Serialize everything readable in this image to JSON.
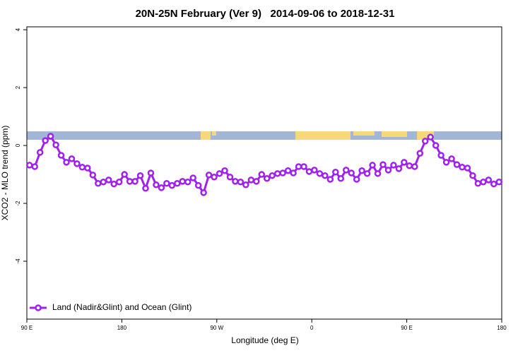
{
  "chart_data": {
    "type": "line",
    "title": "20N-25N February (Ver 9)   2014-09-06 to 2018-12-31",
    "x_label": "Longitude (deg E)",
    "y_label": "XCO2 - MLO trend (ppm)",
    "x": [
      92.5,
      97.5,
      102.5,
      107.5,
      112.5,
      117.5,
      122.5,
      127.5,
      132.5,
      137.5,
      142.5,
      147.5,
      152.5,
      157.5,
      162.5,
      167.5,
      172.5,
      177.5,
      182.5,
      187.5,
      192.5,
      197.5,
      202.5,
      207.5,
      212.5,
      217.5,
      222.5,
      227.5,
      232.5,
      237.5,
      242.5,
      247.5,
      252.5,
      257.5,
      262.5,
      267.5,
      272.5,
      277.5,
      282.5,
      287.5,
      292.5,
      297.5,
      302.5,
      307.5,
      312.5,
      317.5,
      322.5,
      327.5,
      332.5,
      337.5,
      342.5,
      347.5,
      352.5,
      357.5,
      362.5,
      367.5,
      372.5,
      377.5,
      382.5,
      387.5,
      392.5,
      397.5,
      402.5,
      407.5,
      412.5,
      417.5,
      422.5,
      427.5,
      432.5,
      437.5,
      442.5,
      447.5,
      452.5,
      457.5,
      462.5,
      467.5,
      472.5,
      477.5,
      482.5,
      487.5,
      492.5,
      497.5,
      502.5,
      507.5,
      512.5,
      517.5,
      522.5,
      527.5,
      532.5,
      537.5
    ],
    "series": [
      {
        "name": "Land (Nadir&Glint) and Ocean (Glint)",
        "color": "#a020f0",
        "values": [
          -0.68,
          -0.73,
          -0.24,
          0.17,
          0.32,
          0.02,
          -0.34,
          -0.58,
          -0.46,
          -0.63,
          -0.75,
          -0.78,
          -1.02,
          -1.31,
          -1.26,
          -1.19,
          -1.33,
          -1.26,
          -1.0,
          -1.24,
          -1.24,
          -1.04,
          -1.48,
          -0.95,
          -1.36,
          -1.46,
          -1.31,
          -1.38,
          -1.31,
          -1.24,
          -1.26,
          -1.12,
          -1.38,
          -1.63,
          -1.02,
          -1.09,
          -0.97,
          -0.87,
          -1.09,
          -1.24,
          -1.26,
          -1.36,
          -1.19,
          -1.24,
          -1.0,
          -1.14,
          -1.04,
          -0.97,
          -0.95,
          -0.87,
          -0.95,
          -0.73,
          -0.73,
          -0.9,
          -0.85,
          -0.97,
          -1.04,
          -1.17,
          -0.92,
          -1.14,
          -0.85,
          -0.95,
          -1.17,
          -0.87,
          -0.97,
          -0.68,
          -0.97,
          -0.66,
          -0.85,
          -0.68,
          -0.8,
          -0.58,
          -0.7,
          -0.73,
          -0.27,
          0.15,
          0.29,
          0,
          -0.34,
          -0.58,
          -0.46,
          -0.66,
          -0.75,
          -0.78,
          -1.04,
          -1.31,
          -1.26,
          -1.19,
          -1.33,
          -1.26
        ]
      }
    ],
    "xlim": [
      90,
      540
    ],
    "xticks": [
      {
        "value": 90,
        "label": "90 E"
      },
      180,
      {
        "value": 270,
        "label": "90 W"
      },
      {
        "value": 360,
        "label": "0"
      },
      {
        "value": 450,
        "label": "90 E"
      },
      {
        "value": 540,
        "label": "180"
      }
    ],
    "ylim": [
      -6,
      4.1
    ],
    "yticks": [
      -4,
      -2,
      0,
      2,
      4
    ],
    "legend": "bottom-left"
  }
}
